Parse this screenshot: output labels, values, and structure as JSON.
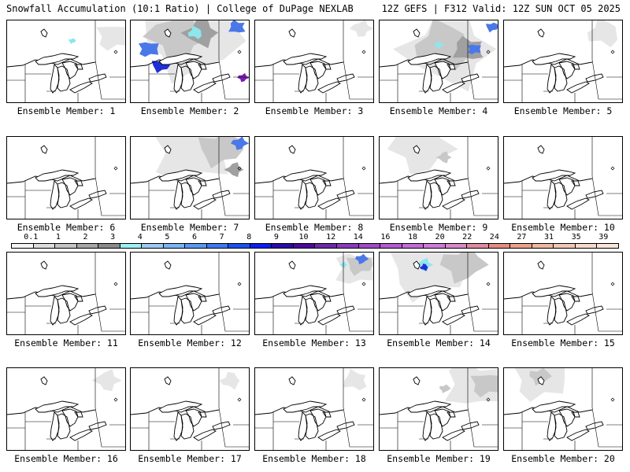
{
  "header": {
    "left": "Snowfall Accumulation (10:1 Ratio) | College of DuPage NEXLAB",
    "right": "12Z GEFS | F312 Valid: 12Z SUN OCT 05 2025"
  },
  "colors": {
    "light": "#e6e6e6",
    "medium": "#c8c8c8",
    "dark": "#a0a0a0",
    "cyan": "#8ee6ee",
    "blue": "#4a78e8",
    "deepblue": "#1f2fd8",
    "purple": "#7a1fb0"
  },
  "colorbar": {
    "labels": [
      "0.1",
      "1",
      "2",
      "3",
      "4",
      "5",
      "6",
      "7",
      "8",
      "9",
      "10",
      "12",
      "14",
      "16",
      "18",
      "20",
      "22",
      "24",
      "27",
      "31",
      "35",
      "39"
    ],
    "colors": [
      "#f4f4f4",
      "#dcdcdc",
      "#c4c4c4",
      "#a6a6a6",
      "#8a8a8a",
      "#9eeef2",
      "#9ec8ee",
      "#7ab4f2",
      "#5a98f0",
      "#3e78ee",
      "#1e50ee",
      "#0c1ef0",
      "#2a0aa8",
      "#4a0a9a",
      "#6a2aaa",
      "#8a3abc",
      "#a04ac6",
      "#b25ad0",
      "#c46ad8",
      "#d07ad8",
      "#d88ac8",
      "#de8aa0",
      "#e48a82",
      "#eaa088",
      "#eeb6a0",
      "#f2c6b4",
      "#f6d8ca",
      "#f8e4d8"
    ]
  },
  "members": [
    {
      "label": "Ensemble Member: 1",
      "blobs": [
        {
          "fx": 0.9,
          "fy": 0.2,
          "r": 0.2,
          "level": "light"
        },
        {
          "fx": 0.55,
          "fy": 0.25,
          "r": 0.04,
          "level": "cyan"
        }
      ]
    },
    {
      "label": "Ensemble Member: 2",
      "blobs": [
        {
          "fx": 0.5,
          "fy": 0.25,
          "r": 0.55,
          "level": "light"
        },
        {
          "fx": 0.4,
          "fy": 0.2,
          "r": 0.35,
          "level": "medium"
        },
        {
          "fx": 0.6,
          "fy": 0.15,
          "r": 0.2,
          "level": "dark"
        },
        {
          "fx": 0.55,
          "fy": 0.15,
          "r": 0.09,
          "level": "cyan"
        },
        {
          "fx": 0.9,
          "fy": 0.08,
          "r": 0.1,
          "level": "blue"
        },
        {
          "fx": 0.15,
          "fy": 0.35,
          "r": 0.12,
          "level": "blue"
        },
        {
          "fx": 0.25,
          "fy": 0.55,
          "r": 0.1,
          "level": "deepblue"
        },
        {
          "fx": 0.95,
          "fy": 0.7,
          "r": 0.06,
          "level": "purple"
        }
      ]
    },
    {
      "label": "Ensemble Member: 3",
      "blobs": [
        {
          "fx": 0.9,
          "fy": 0.1,
          "r": 0.12,
          "level": "light"
        }
      ]
    },
    {
      "label": "Ensemble Member: 4",
      "blobs": [
        {
          "fx": 0.6,
          "fy": 0.35,
          "r": 0.55,
          "level": "light"
        },
        {
          "fx": 0.55,
          "fy": 0.3,
          "r": 0.35,
          "level": "medium"
        },
        {
          "fx": 0.75,
          "fy": 0.35,
          "r": 0.18,
          "level": "dark"
        },
        {
          "fx": 0.8,
          "fy": 0.35,
          "r": 0.08,
          "level": "blue"
        },
        {
          "fx": 0.95,
          "fy": 0.08,
          "r": 0.07,
          "level": "blue"
        },
        {
          "fx": 0.5,
          "fy": 0.3,
          "r": 0.05,
          "level": "cyan"
        }
      ]
    },
    {
      "label": "Ensemble Member: 5",
      "blobs": [
        {
          "fx": 0.85,
          "fy": 0.15,
          "r": 0.2,
          "level": "light"
        }
      ]
    },
    {
      "label": "Ensemble Member: 6",
      "blobs": []
    },
    {
      "label": "Ensemble Member: 7",
      "blobs": [
        {
          "fx": 0.5,
          "fy": 0.2,
          "r": 0.45,
          "level": "light"
        },
        {
          "fx": 0.75,
          "fy": 0.15,
          "r": 0.25,
          "level": "medium"
        },
        {
          "fx": 0.92,
          "fy": 0.08,
          "r": 0.09,
          "level": "blue"
        },
        {
          "fx": 0.88,
          "fy": 0.4,
          "r": 0.1,
          "level": "dark"
        }
      ]
    },
    {
      "label": "Ensemble Member: 8",
      "blobs": []
    },
    {
      "label": "Ensemble Member: 9",
      "blobs": [
        {
          "fx": 0.35,
          "fy": 0.15,
          "r": 0.35,
          "level": "light"
        },
        {
          "fx": 0.55,
          "fy": 0.25,
          "r": 0.08,
          "level": "medium"
        }
      ]
    },
    {
      "label": "Ensemble Member: 10",
      "blobs": []
    },
    {
      "label": "Ensemble Member: 11",
      "blobs": []
    },
    {
      "label": "Ensemble Member: 12",
      "blobs": []
    },
    {
      "label": "Ensemble Member: 13",
      "blobs": [
        {
          "fx": 0.85,
          "fy": 0.2,
          "r": 0.25,
          "level": "light"
        },
        {
          "fx": 0.88,
          "fy": 0.15,
          "r": 0.15,
          "level": "medium"
        },
        {
          "fx": 0.9,
          "fy": 0.08,
          "r": 0.07,
          "level": "blue"
        },
        {
          "fx": 0.75,
          "fy": 0.15,
          "r": 0.04,
          "level": "cyan"
        }
      ]
    },
    {
      "label": "Ensemble Member: 14",
      "blobs": [
        {
          "fx": 0.4,
          "fy": 0.2,
          "r": 0.45,
          "level": "light"
        },
        {
          "fx": 0.7,
          "fy": 0.15,
          "r": 0.25,
          "level": "medium"
        },
        {
          "fx": 0.38,
          "fy": 0.15,
          "r": 0.09,
          "level": "cyan"
        },
        {
          "fx": 0.38,
          "fy": 0.18,
          "r": 0.05,
          "level": "deepblue"
        }
      ]
    },
    {
      "label": "Ensemble Member: 15",
      "blobs": []
    },
    {
      "label": "Ensemble Member: 16",
      "blobs": [
        {
          "fx": 0.85,
          "fy": 0.15,
          "r": 0.15,
          "level": "light"
        }
      ]
    },
    {
      "label": "Ensemble Member: 17",
      "blobs": [
        {
          "fx": 0.85,
          "fy": 0.15,
          "r": 0.12,
          "level": "light"
        }
      ]
    },
    {
      "label": "Ensemble Member: 18",
      "blobs": [
        {
          "fx": 0.85,
          "fy": 0.15,
          "r": 0.15,
          "level": "light"
        }
      ]
    },
    {
      "label": "Ensemble Member: 19",
      "blobs": [
        {
          "fx": 0.8,
          "fy": 0.2,
          "r": 0.35,
          "level": "light"
        },
        {
          "fx": 0.9,
          "fy": 0.2,
          "r": 0.18,
          "level": "medium"
        },
        {
          "fx": 0.55,
          "fy": 0.25,
          "r": 0.06,
          "level": "medium"
        }
      ]
    },
    {
      "label": "Ensemble Member: 20",
      "blobs": [
        {
          "fx": 0.3,
          "fy": 0.15,
          "r": 0.3,
          "level": "light"
        },
        {
          "fx": 0.3,
          "fy": 0.1,
          "r": 0.12,
          "level": "medium"
        }
      ]
    }
  ]
}
